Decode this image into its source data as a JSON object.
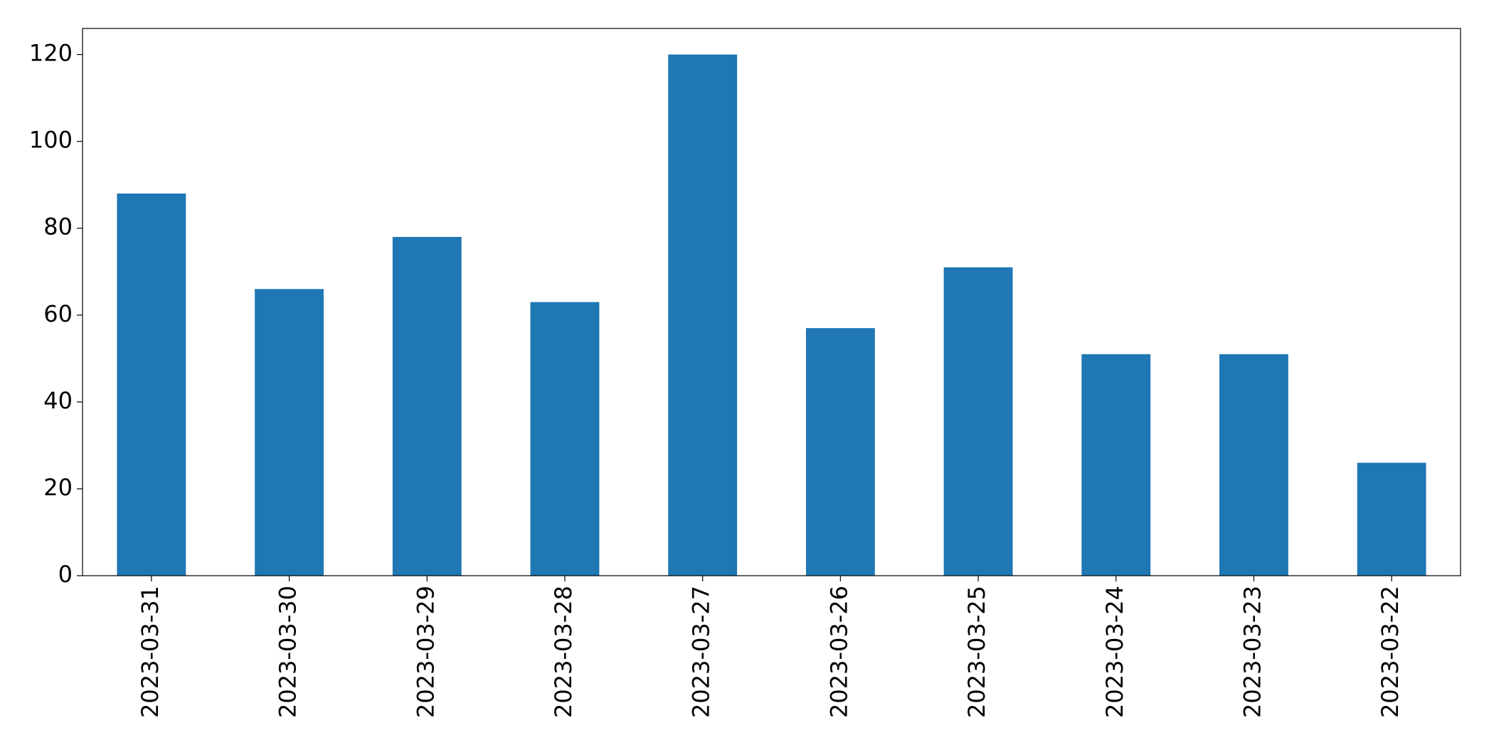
{
  "chart_data": {
    "type": "bar",
    "categories": [
      "2023-03-31",
      "2023-03-30",
      "2023-03-29",
      "2023-03-28",
      "2023-03-27",
      "2023-03-26",
      "2023-03-25",
      "2023-03-24",
      "2023-03-23",
      "2023-03-22"
    ],
    "values": [
      88,
      66,
      78,
      63,
      120,
      57,
      71,
      51,
      51,
      26
    ],
    "color": "#1f77b4",
    "ylim": [
      0,
      126
    ],
    "yticks": [
      0,
      20,
      40,
      60,
      80,
      100,
      120
    ],
    "grid": false
  }
}
